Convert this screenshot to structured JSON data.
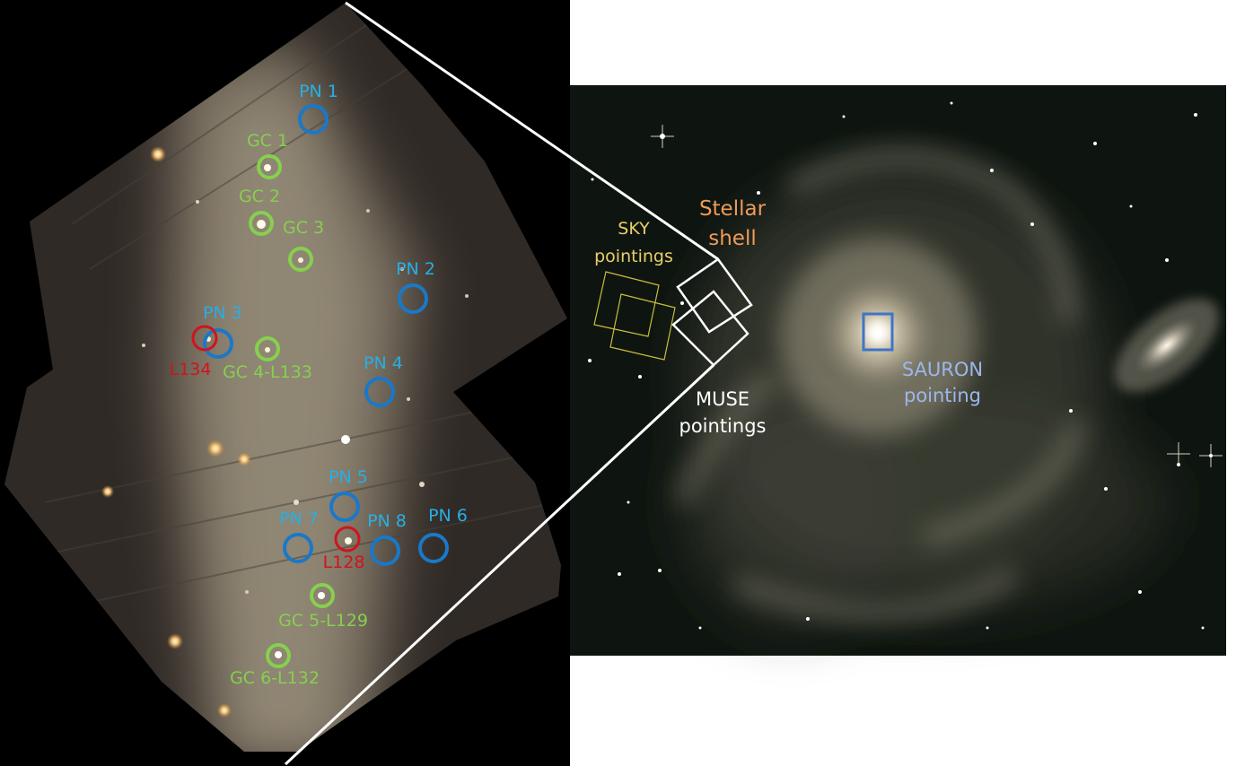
{
  "colors": {
    "pn": "#1a78c8",
    "pn_text": "#28aee6",
    "gc": "#86d04e",
    "red": "#d0141e",
    "sky": "#e8cf6a",
    "stellar": "#ee9a5a",
    "muse": "#ffffff",
    "sauron_box": "#3f74c8",
    "sauron_text": "#9cb7ec"
  },
  "inset": {
    "pn_labels": {
      "pn1": "PN 1",
      "pn2": "PN 2",
      "pn3": "PN 3",
      "pn4": "PN 4",
      "pn5": "PN 5",
      "pn6": "PN 6",
      "pn7": "PN 7",
      "pn8": "PN 8"
    },
    "gc_labels": {
      "gc1": "GC 1",
      "gc2": "GC 2",
      "gc3": "GC 3",
      "gc4": "GC 4-L133",
      "gc5": "GC 5-L129",
      "gc6": "GC 6-L132"
    },
    "red_labels": {
      "l134": "L134",
      "l128": "L128"
    }
  },
  "main": {
    "sky_label": [
      "SKY",
      "pointings"
    ],
    "stellar_label": [
      "Stellar",
      "shell"
    ],
    "muse_label": [
      "MUSE",
      "pointings"
    ],
    "sauron_label": [
      "SAURON",
      "pointing"
    ]
  }
}
